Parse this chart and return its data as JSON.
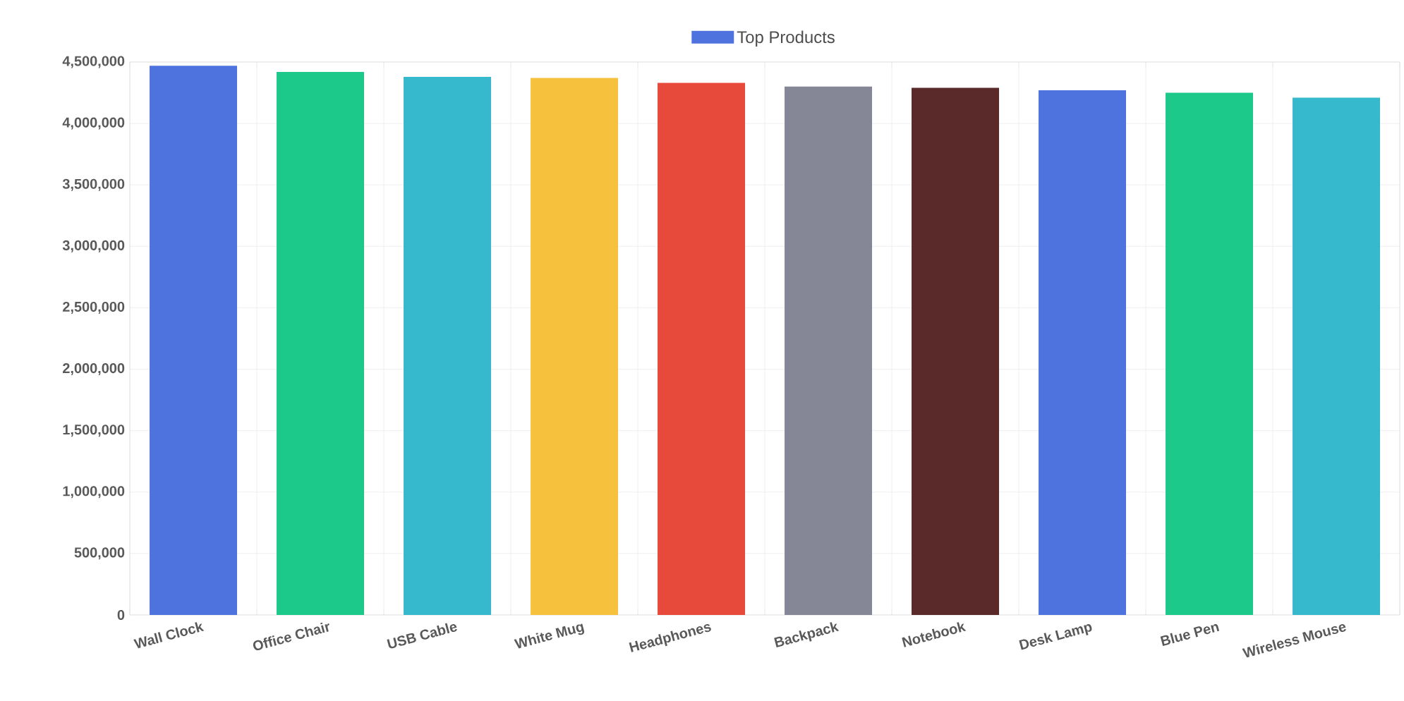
{
  "chart_data": {
    "type": "bar",
    "categories": [
      "Wall Clock",
      "Office Chair",
      "USB Cable",
      "White Mug",
      "Headphones",
      "Backpack",
      "Notebook",
      "Desk Lamp",
      "Blue Pen",
      "Wireless Mouse"
    ],
    "series": [
      {
        "name": "Top Products",
        "color": "#4e73df",
        "values": [
          4470000,
          4420000,
          4380000,
          4370000,
          4330000,
          4300000,
          4290000,
          4270000,
          4250000,
          4210000
        ],
        "colors": [
          "#4e73df",
          "#1cc88a",
          "#36b9cc",
          "#f6c23e",
          "#e74a3b",
          "#858796",
          "#5a2a2a",
          "#4e73df",
          "#1cc88a",
          "#36b9cc"
        ]
      }
    ],
    "ylim": [
      0,
      4500000
    ],
    "yticks": [
      {
        "value": 0,
        "label": "0"
      },
      {
        "value": 500000,
        "label": "500,000"
      },
      {
        "value": 1000000,
        "label": "1,000,000"
      },
      {
        "value": 1500000,
        "label": "1,500,000"
      },
      {
        "value": 2000000,
        "label": "2,000,000"
      },
      {
        "value": 2500000,
        "label": "2,500,000"
      },
      {
        "value": 3000000,
        "label": "3,000,000"
      },
      {
        "value": 3500000,
        "label": "3,500,000"
      },
      {
        "value": 4000000,
        "label": "4,000,000"
      },
      {
        "value": 4500000,
        "label": "4,500,000"
      }
    ],
    "grid": true,
    "legend": "top"
  }
}
